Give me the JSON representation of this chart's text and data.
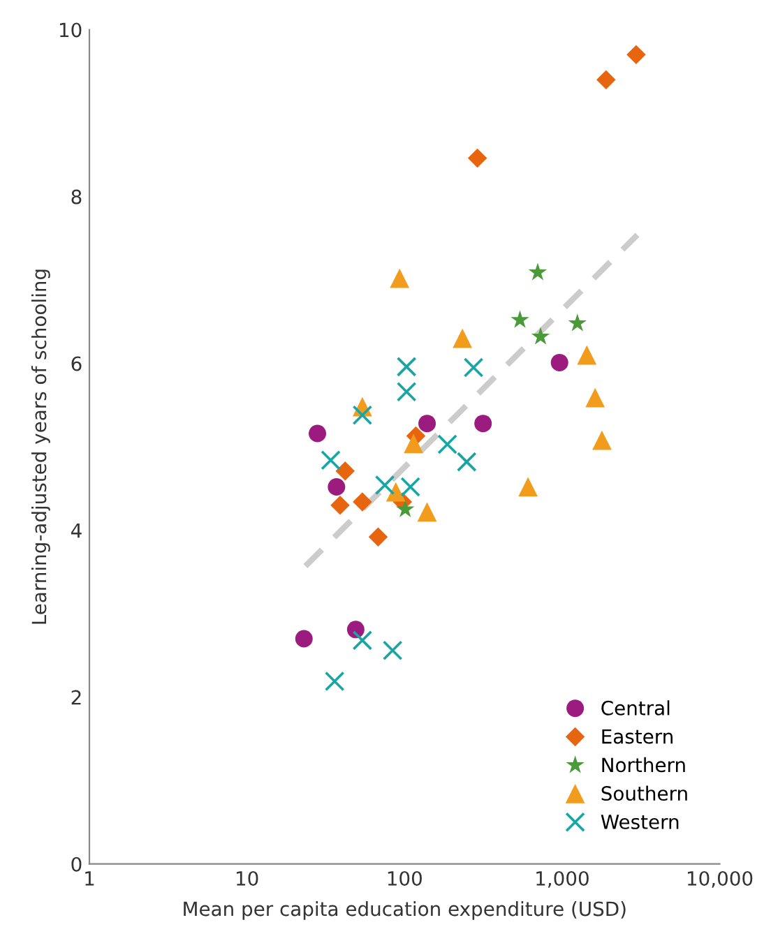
{
  "chart_data": {
    "type": "scatter",
    "xlabel": "Mean per capita education expenditure (USD)",
    "ylabel": "Learning-adjusted years of schooling",
    "log": "x",
    "xlim": [
      1,
      10000
    ],
    "xticks": [
      1,
      10,
      100,
      {
        "value": 1000,
        "label": "1,000"
      },
      {
        "value": 10000,
        "label": "10,000"
      }
    ],
    "ylim": [
      0,
      10
    ],
    "yticks": [
      0,
      2,
      4,
      6,
      8,
      10
    ],
    "grid": false,
    "legend": "bottom right",
    "series": [
      {
        "name": "Central",
        "color": "#9b1b7e",
        "marker": "circle",
        "x": [
          28,
          37,
          139,
          315,
          963,
          23,
          49
        ],
        "values": [
          5.16,
          4.52,
          5.28,
          5.28,
          6.01,
          2.7,
          2.81
        ]
      },
      {
        "name": "Eastern",
        "color": "#e8650f",
        "marker": "diamond",
        "x": [
          2950,
          1900,
          290,
          42,
          39,
          54,
          68,
          118,
          97
        ],
        "values": [
          9.7,
          9.4,
          8.46,
          4.71,
          4.3,
          4.34,
          3.92,
          5.13,
          4.34
        ]
      },
      {
        "name": "Northern",
        "color": "#4a9a3a",
        "marker": "star",
        "x": [
          700,
          540,
          730,
          1250,
          101
        ],
        "values": [
          7.09,
          6.52,
          6.32,
          6.48,
          4.25
        ]
      },
      {
        "name": "Southern",
        "color": "#f29c1d",
        "marker": "triangle",
        "x": [
          93,
          233,
          54,
          114,
          88,
          139,
          608,
          1435,
          1620,
          1790
        ],
        "values": [
          7.02,
          6.3,
          5.48,
          5.04,
          4.46,
          4.22,
          4.52,
          6.1,
          5.59,
          5.08
        ]
      },
      {
        "name": "Western",
        "color": "#1aa5a5",
        "marker": "cross",
        "x": [
          34,
          54,
          103,
          103,
          274,
          187,
          248,
          75,
          109,
          54,
          84,
          36
        ],
        "values": [
          4.84,
          5.38,
          5.96,
          5.66,
          5.95,
          5.03,
          4.82,
          4.54,
          4.52,
          2.68,
          2.56,
          2.19
        ]
      },
      {
        "type": "line",
        "color": "#cccccc",
        "line_style": "dashed",
        "marker": "none",
        "x": [
          23.5,
          3000
        ],
        "values": [
          3.57,
          7.54
        ]
      }
    ]
  }
}
